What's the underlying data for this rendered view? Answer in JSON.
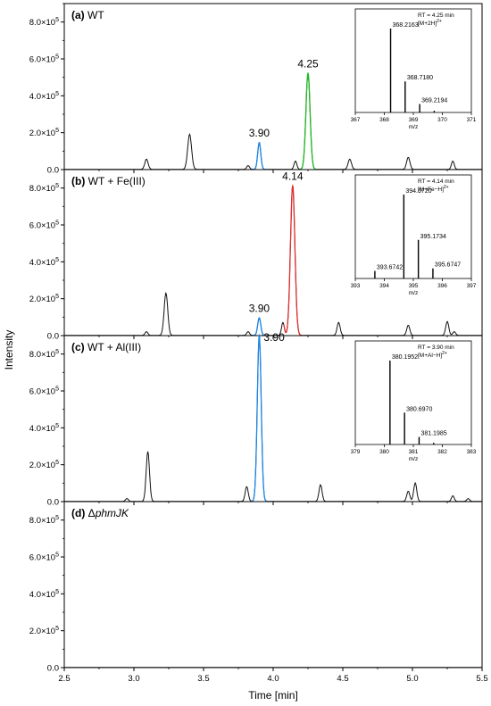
{
  "figure": {
    "ylabel": "Intensity",
    "xlabel": "Time [min]",
    "x_ticks": [
      "2.5",
      "3.0",
      "3.5",
      "4.0",
      "4.5",
      "5.0",
      "5.5"
    ],
    "y_ticks": [
      "0.0",
      "2.0×10",
      "4.0×10",
      "6.0×10",
      "8.0×10"
    ],
    "y_tick_exponent": "5"
  },
  "chart_data": [
    {
      "type": "line",
      "panel_label": "(a)",
      "title_rest": " WT",
      "title_italic": "",
      "xlim": [
        2.5,
        5.5
      ],
      "ylim": [
        0,
        900000
      ],
      "peaks": [
        {
          "x": 3.09,
          "y": 55000,
          "w": 0.012,
          "color": "#000000"
        },
        {
          "x": 3.4,
          "y": 190000,
          "w": 0.014,
          "color": "#000000"
        },
        {
          "x": 3.82,
          "y": 20000,
          "w": 0.01,
          "color": "#000000"
        },
        {
          "x": 3.9,
          "y": 145000,
          "w": 0.011,
          "color": "#1e88e5"
        },
        {
          "x": 4.16,
          "y": 45000,
          "w": 0.01,
          "color": "#000000"
        },
        {
          "x": 4.25,
          "y": 520000,
          "w": 0.015,
          "color": "#22bb22"
        },
        {
          "x": 4.55,
          "y": 55000,
          "w": 0.012,
          "color": "#000000"
        },
        {
          "x": 4.97,
          "y": 65000,
          "w": 0.012,
          "color": "#000000"
        },
        {
          "x": 5.29,
          "y": 45000,
          "w": 0.01,
          "color": "#000000"
        }
      ],
      "annotations": [
        {
          "x": 3.9,
          "y": 145000,
          "text": "3.90"
        },
        {
          "x": 4.25,
          "y": 520000,
          "text": "4.25"
        }
      ],
      "inset": {
        "info1": "RT = 4.25 min",
        "info2": "[M+2H]",
        "info2_sup": "2+",
        "xlabel": "m/z",
        "xlim": [
          367,
          371
        ],
        "xticks": [
          "367",
          "368",
          "369",
          "370",
          "371"
        ],
        "sticks": [
          {
            "x": 368.2163,
            "y": 1.0,
            "label": "368.2163"
          },
          {
            "x": 368.718,
            "y": 0.37,
            "label": "368.7180"
          },
          {
            "x": 369.2194,
            "y": 0.1,
            "label": "369.2194"
          },
          {
            "x": 369.72,
            "y": 0.02,
            "label": ""
          }
        ]
      }
    },
    {
      "type": "line",
      "panel_label": "(b)",
      "title_rest": " WT + Fe(III)",
      "title_italic": "",
      "xlim": [
        2.5,
        5.5
      ],
      "ylim": [
        0,
        900000
      ],
      "peaks": [
        {
          "x": 3.09,
          "y": 20000,
          "w": 0.01,
          "color": "#000000"
        },
        {
          "x": 3.23,
          "y": 230000,
          "w": 0.013,
          "color": "#000000"
        },
        {
          "x": 3.82,
          "y": 20000,
          "w": 0.01,
          "color": "#000000"
        },
        {
          "x": 3.9,
          "y": 95000,
          "w": 0.011,
          "color": "#1e88e5"
        },
        {
          "x": 4.07,
          "y": 70000,
          "w": 0.01,
          "color": "#000000"
        },
        {
          "x": 4.14,
          "y": 810000,
          "w": 0.016,
          "color": "#e03030"
        },
        {
          "x": 4.47,
          "y": 70000,
          "w": 0.011,
          "color": "#000000"
        },
        {
          "x": 4.97,
          "y": 55000,
          "w": 0.011,
          "color": "#000000"
        },
        {
          "x": 5.25,
          "y": 75000,
          "w": 0.011,
          "color": "#000000"
        },
        {
          "x": 5.3,
          "y": 20000,
          "w": 0.01,
          "color": "#000000"
        }
      ],
      "annotations": [
        {
          "x": 3.9,
          "y": 95000,
          "text": "3.90"
        },
        {
          "x": 4.14,
          "y": 810000,
          "text": "4.14"
        }
      ],
      "inset": {
        "info1": "RT = 4.14 min",
        "info2": "[M+Fe−H]",
        "info2_sup": "2+",
        "xlabel": "m/z",
        "xlim": [
          393,
          397
        ],
        "xticks": [
          "393",
          "394",
          "395",
          "396",
          "397"
        ],
        "sticks": [
          {
            "x": 393.6742,
            "y": 0.09,
            "label": "393.6742"
          },
          {
            "x": 394.672,
            "y": 1.0,
            "label": "394.6720"
          },
          {
            "x": 395.1734,
            "y": 0.46,
            "label": "395.1734"
          },
          {
            "x": 395.6747,
            "y": 0.12,
            "label": "395.6747"
          }
        ]
      }
    },
    {
      "type": "line",
      "panel_label": "(c)",
      "title_rest": " WT + Al(III)",
      "title_italic": "",
      "xlim": [
        2.5,
        5.5
      ],
      "ylim": [
        0,
        900000
      ],
      "peaks": [
        {
          "x": 2.95,
          "y": 15000,
          "w": 0.01,
          "color": "#000000"
        },
        {
          "x": 3.1,
          "y": 270000,
          "w": 0.012,
          "color": "#000000"
        },
        {
          "x": 3.81,
          "y": 80000,
          "w": 0.011,
          "color": "#000000"
        },
        {
          "x": 3.9,
          "y": 900000,
          "w": 0.014,
          "color": "#1e88e5"
        },
        {
          "x": 4.34,
          "y": 90000,
          "w": 0.011,
          "color": "#000000"
        },
        {
          "x": 4.97,
          "y": 55000,
          "w": 0.011,
          "color": "#000000"
        },
        {
          "x": 5.02,
          "y": 100000,
          "w": 0.011,
          "color": "#000000"
        },
        {
          "x": 5.29,
          "y": 30000,
          "w": 0.01,
          "color": "#000000"
        },
        {
          "x": 5.4,
          "y": 15000,
          "w": 0.01,
          "color": "#000000"
        }
      ],
      "annotations": [
        {
          "x": 3.9,
          "y": 900000,
          "text": "3.90",
          "side": "right"
        }
      ],
      "inset": {
        "info1": "RT = 3.90 min",
        "info2": "[M+Al−H]",
        "info2_sup": "2+",
        "xlabel": "m/z",
        "xlim": [
          379,
          383
        ],
        "xticks": [
          "379",
          "380",
          "381",
          "382",
          "383"
        ],
        "sticks": [
          {
            "x": 380.1952,
            "y": 1.0,
            "label": "380.1952"
          },
          {
            "x": 380.697,
            "y": 0.38,
            "label": "380.6970"
          },
          {
            "x": 381.1985,
            "y": 0.09,
            "label": "381.1985"
          },
          {
            "x": 381.7,
            "y": 0.02,
            "label": ""
          }
        ]
      }
    },
    {
      "type": "line",
      "panel_label": "(d)",
      "title_rest": "",
      "title_prefix": " Δ",
      "title_italic": "phmJK",
      "xlim": [
        2.5,
        5.5
      ],
      "ylim": [
        0,
        900000
      ],
      "peaks": [],
      "annotations": []
    }
  ]
}
